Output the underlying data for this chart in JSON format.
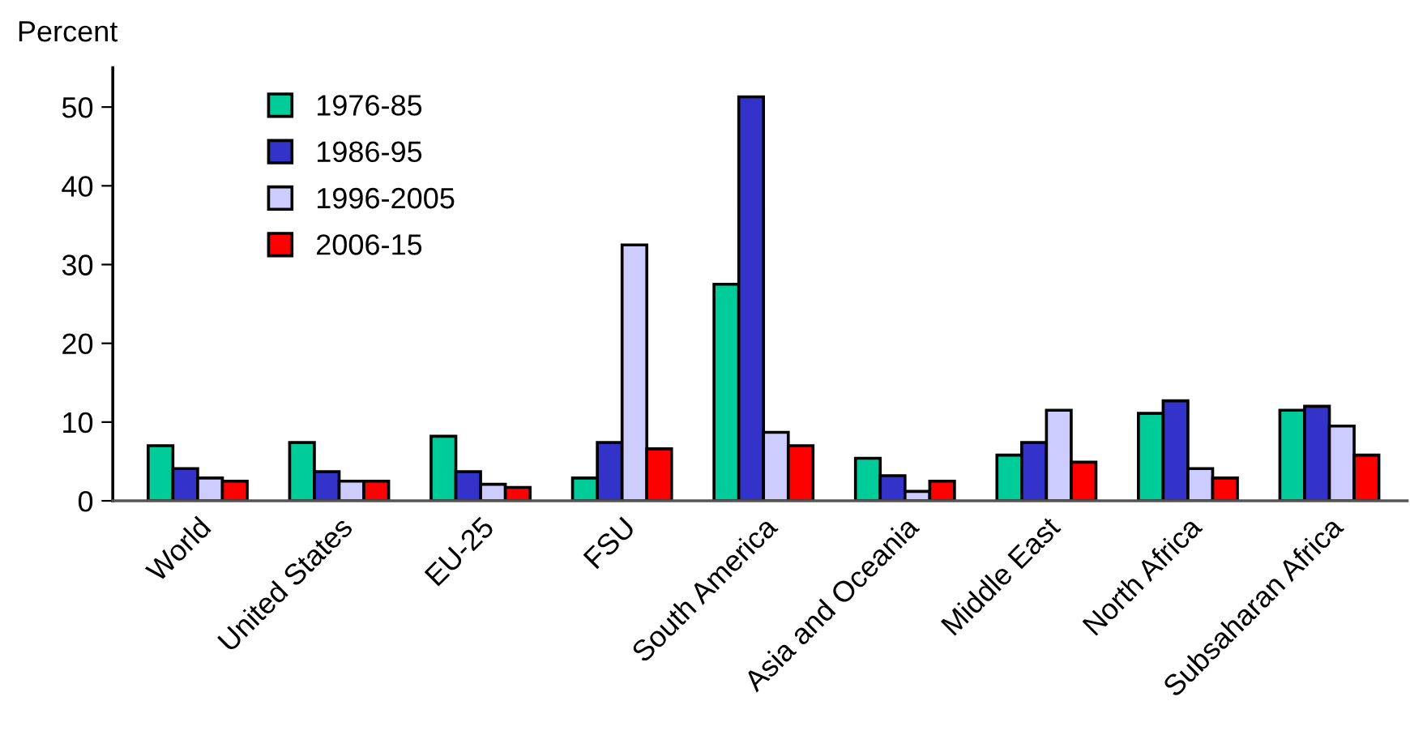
{
  "chart_data": {
    "type": "bar",
    "ylabel": "Percent",
    "categories": [
      "World",
      "United States",
      "EU-25",
      "FSU",
      "South America",
      "Asia and Oceania",
      "Middle East",
      "North Africa",
      "Subsaharan Africa"
    ],
    "series": [
      {
        "name": "1976-85",
        "color": "#00cc99",
        "values": [
          7.0,
          7.4,
          8.2,
          2.9,
          27.5,
          5.4,
          5.8,
          11.1,
          11.5
        ]
      },
      {
        "name": "1986-95",
        "color": "#3333cc",
        "values": [
          4.1,
          3.7,
          3.7,
          7.4,
          51.3,
          3.2,
          7.4,
          12.7,
          12.0
        ]
      },
      {
        "name": "1996-2005",
        "color": "#ccccff",
        "values": [
          2.9,
          2.5,
          2.1,
          32.5,
          8.7,
          1.2,
          11.5,
          4.1,
          9.5
        ]
      },
      {
        "name": "2006-15",
        "color": "#ff0000",
        "values": [
          2.5,
          2.5,
          1.7,
          6.6,
          7.0,
          2.5,
          4.9,
          2.9,
          5.8
        ]
      }
    ],
    "ylim": [
      0,
      55
    ],
    "yticks": [
      0,
      10,
      20,
      30,
      40,
      50
    ],
    "grid": false,
    "legend": "top left"
  }
}
